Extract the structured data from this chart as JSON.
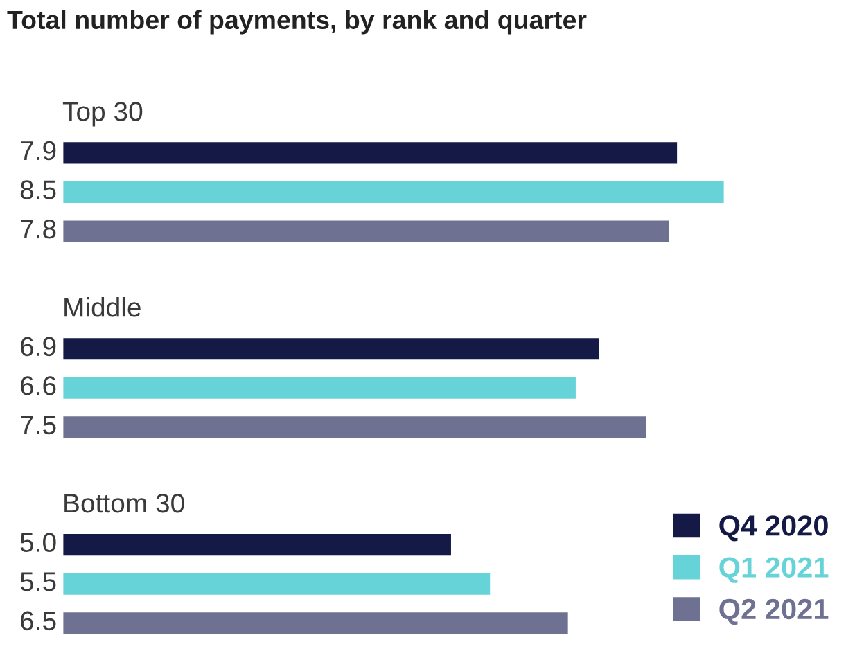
{
  "chart_data": {
    "type": "bar",
    "orientation": "horizontal",
    "title": "Total number of payments, by rank and quarter",
    "categories": [
      "Top 30",
      "Middle",
      "Bottom 30"
    ],
    "series": [
      {
        "name": "Q4 2020",
        "color": "#141a45",
        "values": [
          7.9,
          6.9,
          5.0
        ],
        "value_labels": [
          "7.9",
          "6.9",
          "5.0"
        ]
      },
      {
        "name": "Q1 2021",
        "color": "#66d3d9",
        "values": [
          8.5,
          6.6,
          5.5
        ],
        "value_labels": [
          "8.5",
          "6.6",
          "5.5"
        ]
      },
      {
        "name": "Q2 2021",
        "color": "#6e7191",
        "values": [
          7.8,
          7.5,
          6.5
        ],
        "value_labels": [
          "7.8",
          "7.5",
          "6.5"
        ]
      }
    ],
    "legend": "bottom right"
  }
}
